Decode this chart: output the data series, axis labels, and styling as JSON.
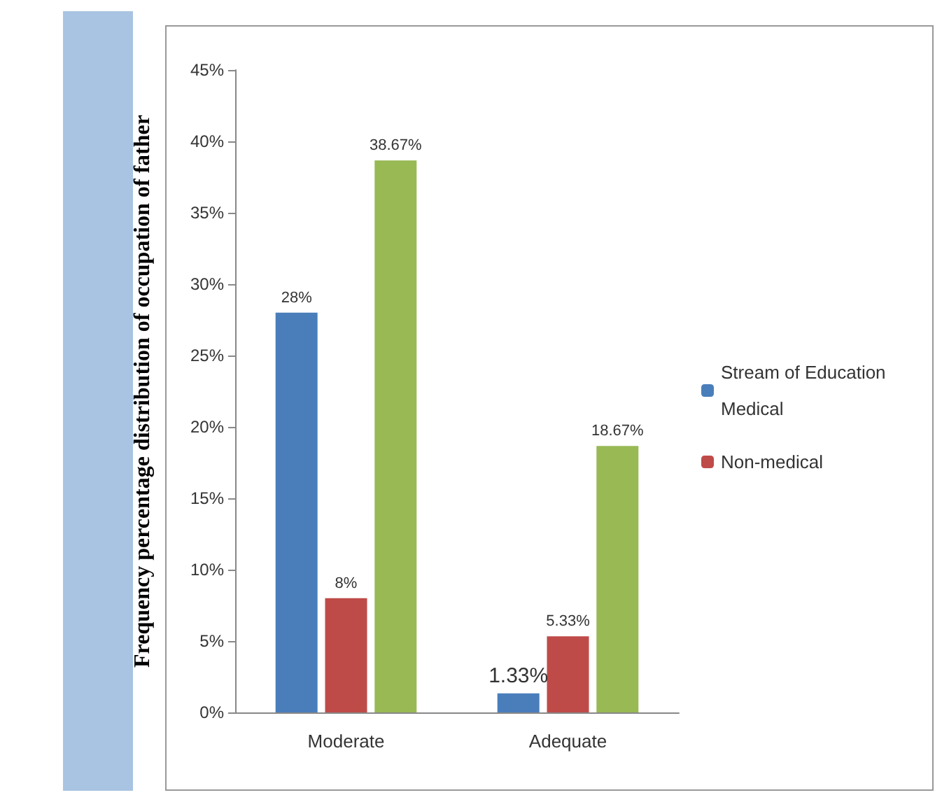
{
  "chart_data": {
    "type": "bar",
    "ylabel": "Frequency percentage distribution of occupation of father",
    "categories": [
      "Moderate",
      "Adequate"
    ],
    "series": [
      {
        "name": "Stream of Education Medical",
        "color": "#4a7ebb",
        "values": [
          28,
          1.33
        ],
        "value_labels": [
          "28%",
          "1.33%"
        ]
      },
      {
        "name": "Non-medical",
        "color": "#be4b48",
        "values": [
          8,
          5.33
        ],
        "value_labels": [
          "8%",
          "5.33%"
        ]
      },
      {
        "color": "#98b954",
        "values": [
          38.67,
          18.67
        ],
        "value_labels": [
          "38.67%",
          "18.67%"
        ]
      }
    ],
    "ylim": [
      0,
      45
    ],
    "yticks": [
      {
        "value": 0,
        "label": "0%"
      },
      {
        "value": 5,
        "label": "5%"
      },
      {
        "value": 10,
        "label": "10%"
      },
      {
        "value": 15,
        "label": "15%"
      },
      {
        "value": 20,
        "label": "20%"
      },
      {
        "value": 25,
        "label": "25%"
      },
      {
        "value": 30,
        "label": "30%"
      },
      {
        "value": 35,
        "label": "35%"
      },
      {
        "value": 40,
        "label": "40%"
      },
      {
        "value": 45,
        "label": "45%"
      }
    ],
    "grid": false,
    "legend": "right"
  }
}
